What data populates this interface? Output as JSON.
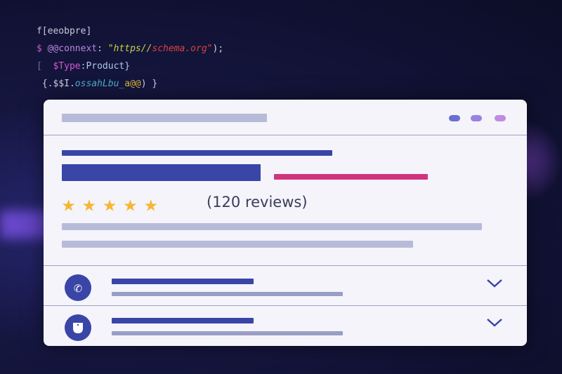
{
  "code": {
    "line1": "f[eeobpre]",
    "line2": {
      "a": "$ ",
      "b": "@@connext",
      "c": ": ",
      "d": "\"https//",
      "e": "schema.org",
      "f": "\"",
      "g": ");"
    },
    "line3": {
      "a": "[  ",
      "b": "$Type",
      "c": ":Product}"
    },
    "line4": {
      "a": " {.$$I.",
      "b": "ossahLbu_",
      "c": "a@@",
      "d": ") }"
    }
  },
  "card": {
    "rating": 5,
    "reviews_text": "(120 reviews)",
    "rows": [
      {
        "icon": "phone-icon"
      },
      {
        "icon": "shield-icon"
      }
    ]
  },
  "colors": {
    "primary": "#3a45a8",
    "accent": "#d1337f",
    "star": "#f5b731",
    "muted": "#b8bbd8"
  }
}
